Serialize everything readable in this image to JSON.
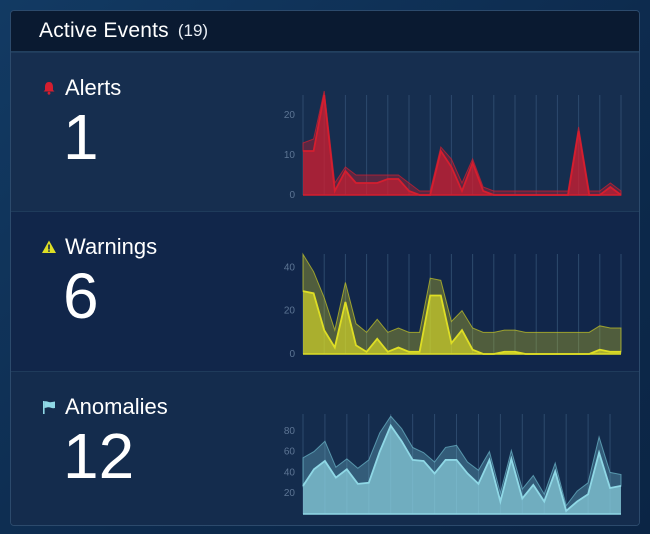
{
  "header": {
    "title": "Active Events",
    "count": "(19)"
  },
  "rows": [
    {
      "label": "Alerts",
      "value": "1",
      "icon": "bell-icon",
      "color": "#d41e2f",
      "band_color": "#d41e2f",
      "chart_data": {
        "type": "area",
        "ylim": [
          0,
          26
        ],
        "yticks": [
          "0",
          "10",
          "20"
        ],
        "ytick_values": [
          0,
          10,
          20
        ],
        "series": [
          {
            "values": [
              11,
              11,
              25,
              1,
              6,
              3,
              3,
              3,
              4,
              4,
              1,
              0,
              0,
              11,
              7,
              1,
              8,
              1,
              0,
              0,
              0,
              0,
              0,
              0,
              0,
              0,
              16,
              0,
              0,
              2,
              0
            ]
          },
          {
            "values": [
              13,
              14,
              26,
              3,
              7,
              5,
              5,
              5,
              5,
              5,
              3,
              1,
              1,
              12,
              9,
              3,
              9,
              2,
              1,
              1,
              1,
              1,
              1,
              1,
              1,
              1,
              17,
              1,
              1,
              3,
              1
            ]
          }
        ]
      }
    },
    {
      "label": "Warnings",
      "value": "6",
      "icon": "warning-triangle-icon",
      "color": "#dede25",
      "band_color": "#c7c726",
      "chart_data": {
        "type": "area",
        "ylim": [
          0,
          48
        ],
        "yticks": [
          "0",
          "20",
          "40"
        ],
        "ytick_values": [
          0,
          20,
          40
        ],
        "series": [
          {
            "values": [
              29,
              28,
              11,
              3,
              24,
              4,
              1,
              7,
              1,
              3,
              1,
              1,
              27,
              27,
              5,
              11,
              2,
              0,
              0,
              1,
              1,
              0,
              0,
              0,
              0,
              0,
              0,
              0,
              2,
              1,
              1
            ]
          },
          {
            "values": [
              46,
              38,
              26,
              11,
              33,
              14,
              10,
              16,
              10,
              12,
              10,
              10,
              35,
              34,
              15,
              20,
              12,
              10,
              10,
              11,
              11,
              10,
              10,
              10,
              10,
              10,
              10,
              10,
              13,
              12,
              12
            ]
          }
        ]
      }
    },
    {
      "label": "Anomalies",
      "value": "12",
      "icon": "flag-icon",
      "color": "#8fd8e6",
      "band_color": "#6cb8cb",
      "chart_data": {
        "type": "area",
        "ylim": [
          0,
          100
        ],
        "yticks": [
          "20",
          "40",
          "60",
          "80"
        ],
        "ytick_values": [
          20,
          40,
          60,
          80
        ],
        "series": [
          {
            "values": [
              27,
              43,
              51,
              35,
              43,
              29,
              30,
              60,
              85,
              70,
              52,
              51,
              39,
              52,
              52,
              39,
              29,
              52,
              12,
              53,
              15,
              28,
              12,
              41,
              3,
              12,
              19,
              59,
              25,
              27
            ]
          },
          {
            "values": [
              54,
              60,
              70,
              45,
              53,
              44,
              52,
              78,
              94,
              82,
              64,
              59,
              50,
              64,
              66,
              50,
              42,
              60,
              20,
              61,
              24,
              37,
              19,
              49,
              8,
              22,
              30,
              74,
              40,
              38
            ]
          }
        ]
      }
    }
  ]
}
